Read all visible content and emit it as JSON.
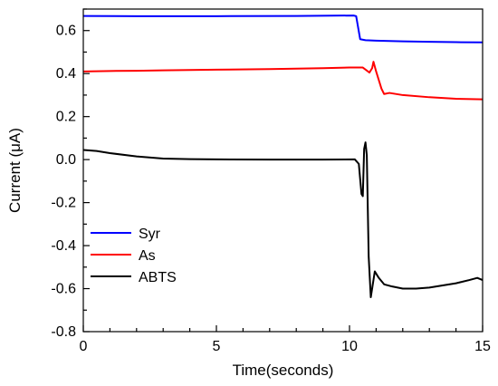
{
  "chart_data": {
    "type": "line",
    "xlabel": "Time(seconds)",
    "ylabel": "Current (μA)",
    "xlim": [
      0,
      15
    ],
    "ylim": [
      -0.8,
      0.7
    ],
    "x_ticks": [
      "0",
      "5",
      "10",
      "15"
    ],
    "x_tick_values": [
      0,
      5,
      10,
      15
    ],
    "y_ticks": [
      "-0.8",
      "-0.6",
      "-0.4",
      "-0.2",
      "0.0",
      "0.2",
      "0.4",
      "0.6"
    ],
    "y_tick_values": [
      -0.8,
      -0.6,
      -0.4,
      -0.2,
      0.0,
      0.2,
      0.4,
      0.6
    ],
    "grid": false,
    "legend_position": "bottom-left",
    "series": [
      {
        "name": "Syr",
        "color": "#0000ff",
        "points": [
          [
            0,
            0.668
          ],
          [
            2,
            0.667
          ],
          [
            5,
            0.667
          ],
          [
            8,
            0.668
          ],
          [
            10.15,
            0.67
          ],
          [
            10.25,
            0.667
          ],
          [
            10.4,
            0.56
          ],
          [
            10.6,
            0.555
          ],
          [
            11,
            0.553
          ],
          [
            12,
            0.55
          ],
          [
            13,
            0.548
          ],
          [
            14,
            0.546
          ],
          [
            15,
            0.545
          ]
        ]
      },
      {
        "name": "As",
        "color": "#ff0000",
        "points": [
          [
            0,
            0.41
          ],
          [
            1,
            0.412
          ],
          [
            2,
            0.413
          ],
          [
            3,
            0.415
          ],
          [
            5,
            0.418
          ],
          [
            7,
            0.421
          ],
          [
            9,
            0.425
          ],
          [
            10,
            0.428
          ],
          [
            10.5,
            0.428
          ],
          [
            10.75,
            0.405
          ],
          [
            10.85,
            0.425
          ],
          [
            10.9,
            0.455
          ],
          [
            11.0,
            0.41
          ],
          [
            11.1,
            0.37
          ],
          [
            11.2,
            0.33
          ],
          [
            11.3,
            0.305
          ],
          [
            11.5,
            0.31
          ],
          [
            12,
            0.3
          ],
          [
            13,
            0.29
          ],
          [
            14,
            0.283
          ],
          [
            15,
            0.28
          ]
        ]
      },
      {
        "name": "ABTS",
        "color": "#000000",
        "points": [
          [
            0,
            0.045
          ],
          [
            0.5,
            0.04
          ],
          [
            1,
            0.03
          ],
          [
            2,
            0.015
          ],
          [
            3,
            0.005
          ],
          [
            4,
            0.002
          ],
          [
            5,
            0.001
          ],
          [
            7,
            0.0
          ],
          [
            9,
            0.0
          ],
          [
            10.2,
            0.001
          ],
          [
            10.35,
            -0.02
          ],
          [
            10.45,
            -0.16
          ],
          [
            10.5,
            -0.17
          ],
          [
            10.55,
            0.05
          ],
          [
            10.6,
            0.08
          ],
          [
            10.65,
            0.02
          ],
          [
            10.72,
            -0.45
          ],
          [
            10.8,
            -0.64
          ],
          [
            10.9,
            -0.56
          ],
          [
            10.95,
            -0.52
          ],
          [
            11.1,
            -0.55
          ],
          [
            11.3,
            -0.58
          ],
          [
            11.6,
            -0.59
          ],
          [
            12,
            -0.6
          ],
          [
            12.5,
            -0.6
          ],
          [
            13,
            -0.595
          ],
          [
            13.5,
            -0.585
          ],
          [
            14,
            -0.575
          ],
          [
            14.5,
            -0.56
          ],
          [
            14.8,
            -0.55
          ],
          [
            15,
            -0.56
          ]
        ]
      }
    ]
  }
}
